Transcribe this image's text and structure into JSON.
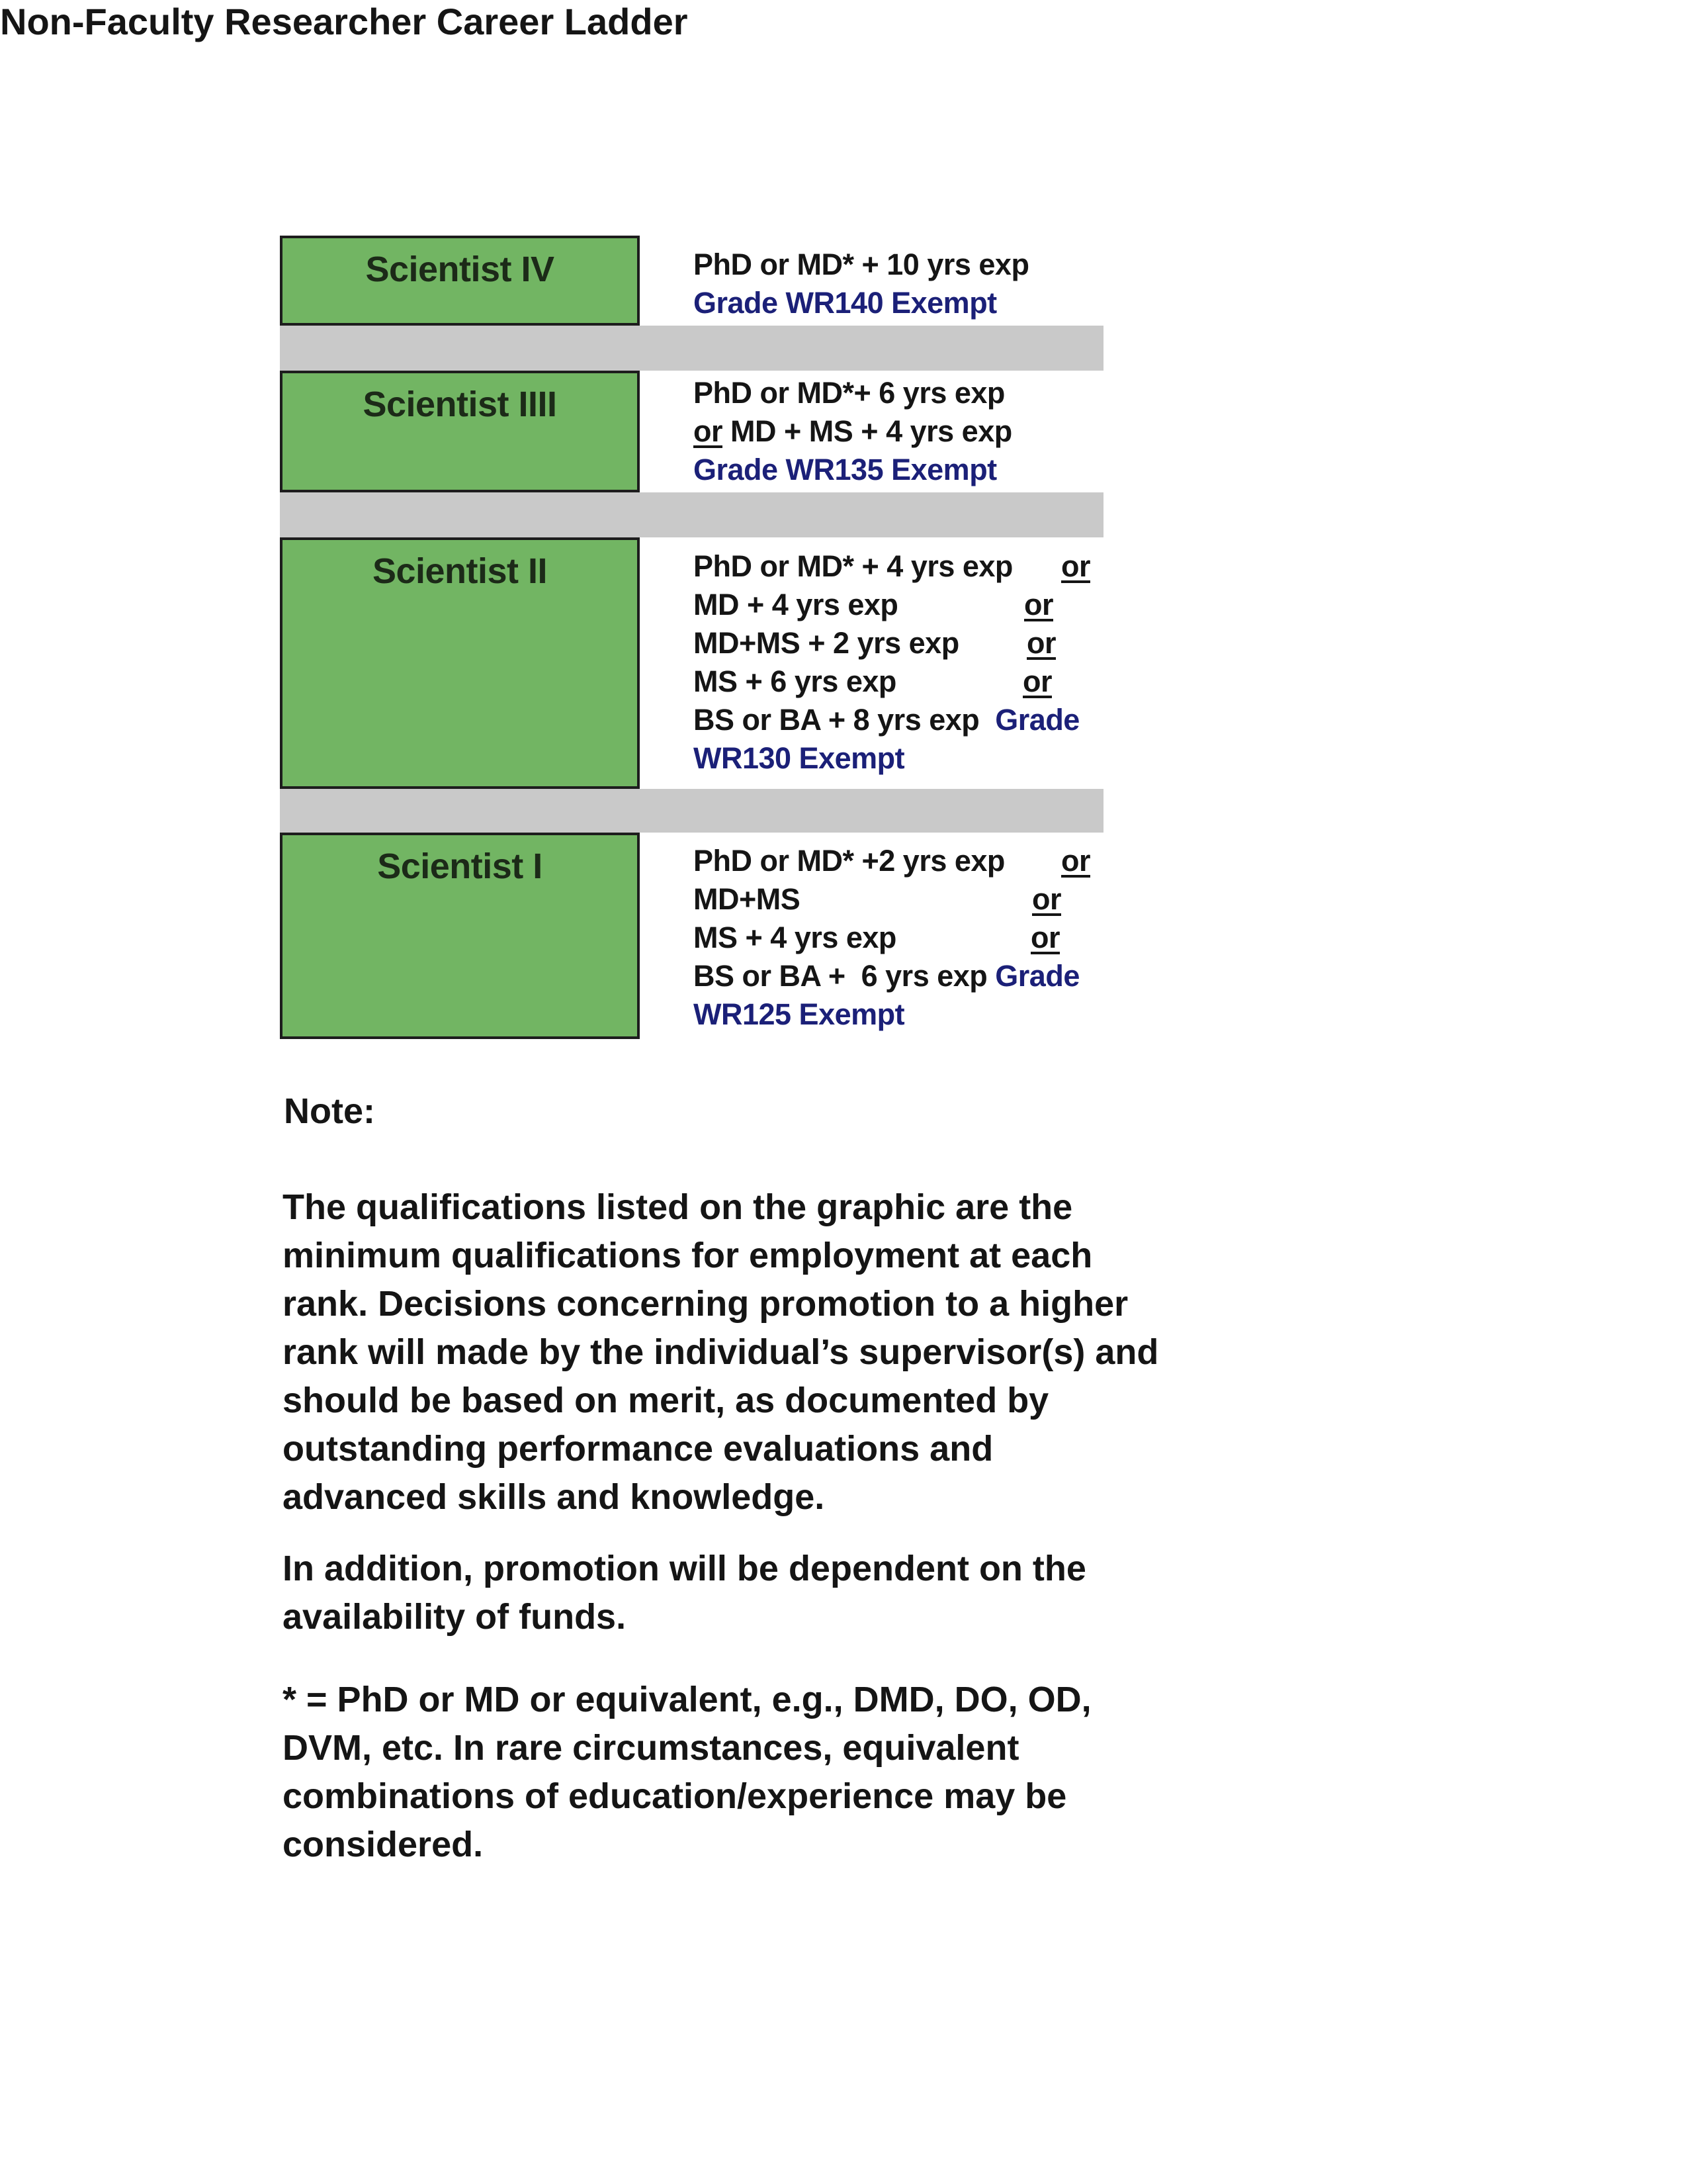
{
  "title": "Non-Faculty Researcher Career Ladder",
  "colors": {
    "box_green": "#72b563",
    "band_gray": "#c9c9c9",
    "grade_blue": "#1b2078"
  },
  "ranks": [
    {
      "label": "Scientist IV",
      "lines": [
        "PhD or MD* + 10 yrs exp",
        "Grade WR140 Exempt"
      ]
    },
    {
      "label": "Scientist IIII",
      "lines": [
        "or",
        "MD + MS + 4 yrs exp",
        "PhD or MD*+ 6 yrs exp",
        "Grade WR135 Exempt"
      ]
    },
    {
      "label": "Scientist II",
      "lines": [
        "PhD or MD* + 4 yrs exp",
        "MD + 4 yrs exp",
        "MD+MS + 2 yrs exp",
        "MS + 6 yrs exp",
        "BS or BA + 8 yrs exp",
        "Grade",
        "WR130 Exempt"
      ],
      "or": "or"
    },
    {
      "label": "Scientist I",
      "lines": [
        "PhD or MD* +2 yrs exp",
        "MD+MS",
        "MS + 4 yrs exp",
        "BS or BA +  6 yrs exp",
        "Grade",
        "WR125 Exempt"
      ],
      "or": "or"
    }
  ],
  "note_heading": "Note:",
  "paragraphs": [
    [
      "The qualifications listed on the graphic are the",
      "minimum qualifications for employment at each",
      "rank. Decisions concerning promotion to a higher",
      "rank will made by the individual’s supervisor(s) and",
      "should be based on merit, as documented by",
      "outstanding performance evaluations and",
      "advanced skills and knowledge."
    ],
    [
      "In addition, promotion will be dependent on the",
      "availability of funds."
    ],
    [
      "* = PhD or MD or equivalent, e.g., DMD, DO, OD,",
      "DVM, etc. In rare circumstances, equivalent",
      "combinations of education/experience may be",
      "considered."
    ]
  ]
}
